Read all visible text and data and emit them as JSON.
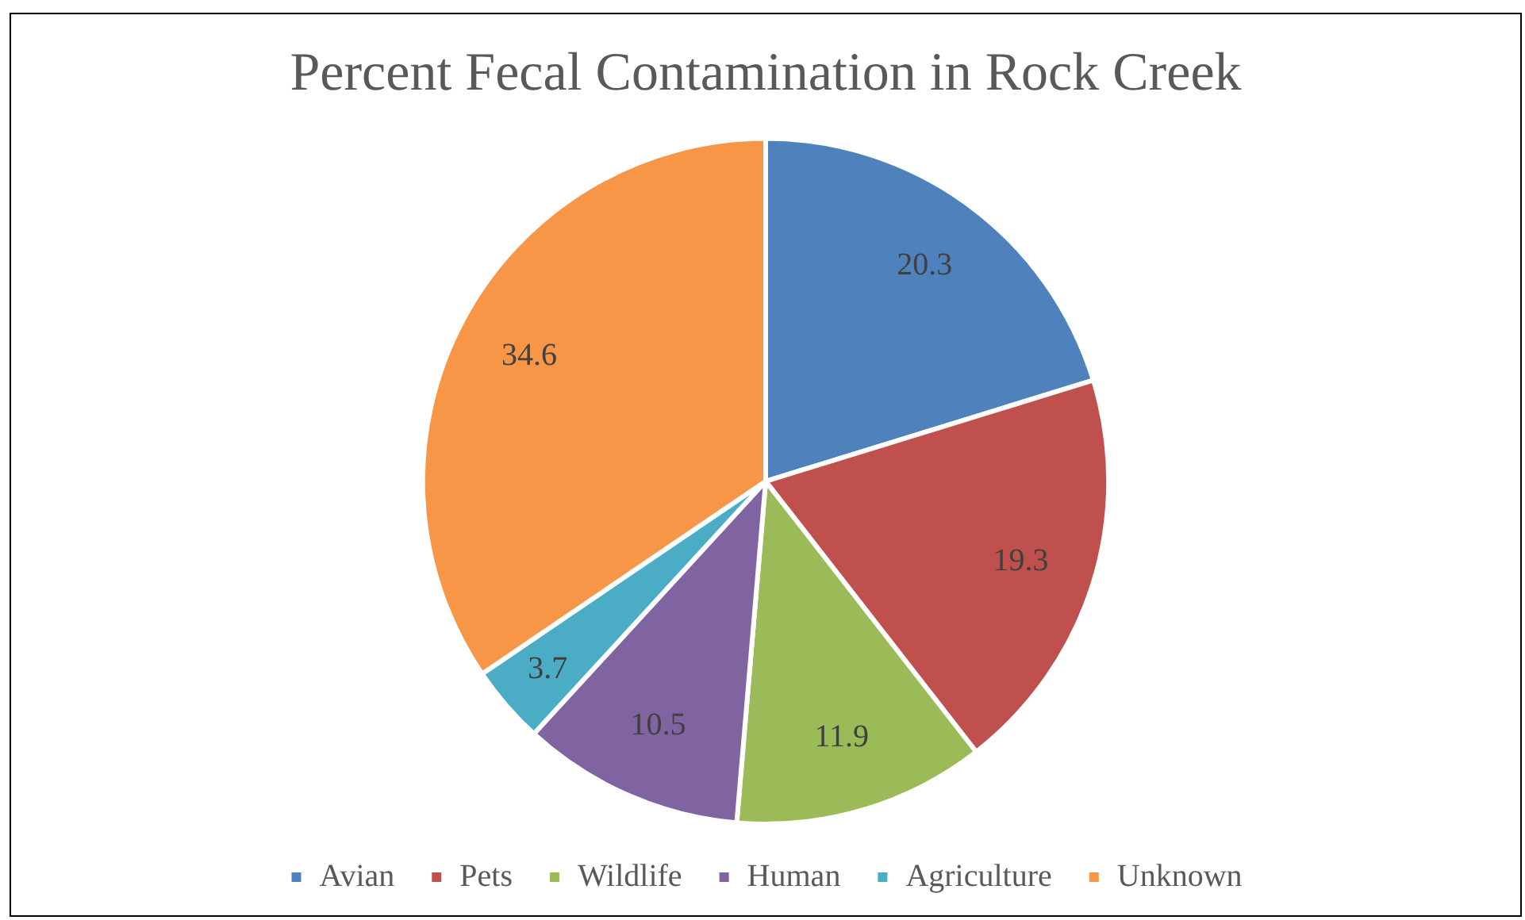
{
  "chart_data": {
    "type": "pie",
    "title": "Percent Fecal Contamination in Rock Creek",
    "categories": [
      "Avian",
      "Pets",
      "Wildlife",
      "Human",
      "Agriculture",
      "Unknown"
    ],
    "values": [
      20.3,
      19.3,
      11.9,
      10.5,
      3.7,
      34.6
    ],
    "colors": [
      "#4f81bd",
      "#c0504d",
      "#9bbb59",
      "#8064a2",
      "#4bacc6",
      "#f79646"
    ],
    "data_labels": true,
    "legend": "bottom"
  }
}
